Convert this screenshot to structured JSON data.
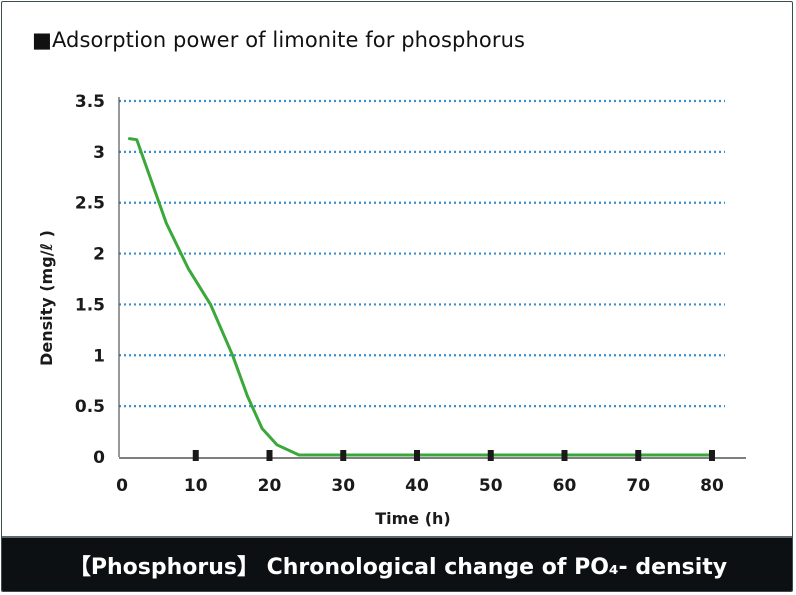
{
  "chart_data": {
    "type": "line",
    "title": "■Adsorption power of limonite for phosphorus",
    "xlabel": "Time (h)",
    "ylabel": "Density (mg/ℓ )",
    "xlim": [
      0,
      80
    ],
    "ylim": [
      0,
      3.5
    ],
    "x_ticks": [
      0,
      10,
      20,
      30,
      40,
      50,
      60,
      70,
      80
    ],
    "x_tick_labels": [
      "0",
      "10",
      "20",
      "30",
      "40",
      "50",
      "60",
      "70",
      "80"
    ],
    "y_ticks": [
      0,
      0.5,
      1,
      1.5,
      2,
      2.5,
      3,
      3.5
    ],
    "y_tick_labels": [
      "0",
      "0.5",
      "1",
      "1.5",
      "2",
      "2.5",
      "3",
      "3.5"
    ],
    "grid": "horizontal dotted",
    "legend": "none",
    "series": [
      {
        "color": "#3aa83a",
        "x": [
          1,
          2,
          6,
          9,
          12,
          15,
          17,
          19,
          21,
          24,
          30,
          40,
          50,
          60,
          70,
          80
        ],
        "y": [
          3.13,
          3.12,
          2.3,
          1.85,
          1.5,
          1.0,
          0.6,
          0.28,
          0.12,
          0.02,
          0.02,
          0.02,
          0.02,
          0.02,
          0.02,
          0.02
        ]
      }
    ],
    "markers": {
      "x": [
        10,
        20,
        30,
        40,
        50,
        60,
        70,
        80
      ],
      "y": 0,
      "color": "#1a1a1a"
    }
  },
  "footer": {
    "caption": "【Phosphorus】 Chronological change of PO₄- density"
  },
  "colors": {
    "grid": "#3a8fd0",
    "axis": "#555555",
    "line": "#3aa83a",
    "footer_bg": "#0c1012",
    "footer_text": "#ffffff"
  }
}
